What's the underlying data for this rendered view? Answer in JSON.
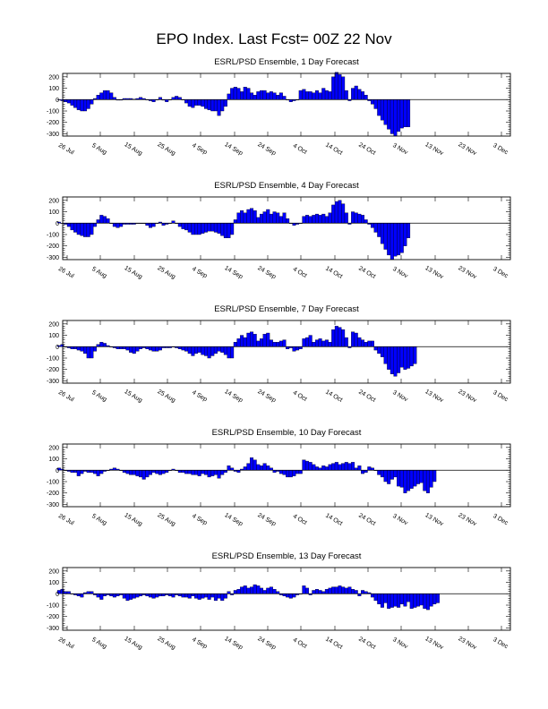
{
  "page": {
    "title": "EPO Index. Last Fcst= 00Z 22 Nov"
  },
  "colors": {
    "bar_fill": "#0000ff",
    "bar_stroke": "#000000",
    "axis": "#000000",
    "background": "#ffffff"
  },
  "chart_data": [
    {
      "type": "bar",
      "title": "ESRL/PSD Ensemble, 1 Day Forecast",
      "xlabel": "",
      "ylabel": "",
      "x_start_date": "2012-07-23",
      "x_tick_labels": [
        "26 Jul",
        "5 Aug",
        "15 Aug",
        "25 Aug",
        "4 Sep",
        "14 Sep",
        "24 Sep",
        "4 Oct",
        "14 Oct",
        "24 Oct",
        "3 Nov",
        "13 Nov",
        "23 Nov",
        "3 Dec"
      ],
      "y_ticks": [
        200,
        100,
        0,
        -100,
        -200,
        -300
      ],
      "ylim": [
        -320,
        230
      ],
      "grid": false,
      "values": [
        0,
        -10,
        -20,
        -30,
        -50,
        -70,
        -90,
        -100,
        -100,
        -80,
        -40,
        10,
        40,
        60,
        80,
        80,
        60,
        20,
        -5,
        -5,
        10,
        10,
        10,
        5,
        10,
        20,
        10,
        0,
        -10,
        -20,
        0,
        20,
        -5,
        -20,
        0,
        20,
        30,
        20,
        0,
        -30,
        -60,
        -70,
        -50,
        -50,
        -60,
        -80,
        -90,
        -100,
        -100,
        -140,
        -100,
        -60,
        50,
        100,
        110,
        100,
        70,
        110,
        100,
        60,
        40,
        70,
        80,
        80,
        60,
        70,
        60,
        40,
        60,
        30,
        0,
        -20,
        -10,
        0,
        80,
        90,
        70,
        70,
        60,
        80,
        60,
        100,
        80,
        70,
        200,
        240,
        220,
        200,
        80,
        -10,
        100,
        120,
        90,
        70,
        40,
        -10,
        -40,
        -80,
        -140,
        -180,
        -220,
        -260,
        -300,
        -320,
        -280,
        -250,
        -240,
        -240
      ]
    },
    {
      "type": "bar",
      "title": "ESRL/PSD Ensemble, 4 Day Forecast",
      "xlabel": "",
      "ylabel": "",
      "x_start_date": "2012-07-23",
      "x_tick_labels": [
        "26 Jul",
        "5 Aug",
        "15 Aug",
        "25 Aug",
        "4 Sep",
        "14 Sep",
        "24 Sep",
        "4 Oct",
        "14 Oct",
        "24 Oct",
        "3 Nov",
        "13 Nov",
        "23 Nov",
        "3 Dec"
      ],
      "y_ticks": [
        200,
        100,
        0,
        -100,
        -200,
        -300
      ],
      "ylim": [
        -320,
        230
      ],
      "grid": false,
      "values": [
        10,
        0,
        -10,
        -30,
        -60,
        -80,
        -100,
        -110,
        -120,
        -120,
        -100,
        -30,
        30,
        70,
        60,
        40,
        0,
        -30,
        -40,
        -30,
        -10,
        -10,
        -10,
        -10,
        0,
        0,
        0,
        -20,
        -40,
        -30,
        0,
        10,
        -20,
        -10,
        0,
        20,
        0,
        -30,
        -50,
        -60,
        -80,
        -100,
        -100,
        -100,
        -90,
        -80,
        -70,
        -70,
        -80,
        -90,
        -110,
        -130,
        -130,
        -100,
        30,
        90,
        110,
        90,
        120,
        130,
        110,
        50,
        80,
        100,
        120,
        80,
        100,
        90,
        60,
        90,
        40,
        0,
        -20,
        -10,
        0,
        60,
        70,
        60,
        70,
        80,
        70,
        80,
        60,
        90,
        160,
        190,
        200,
        170,
        90,
        -10,
        100,
        90,
        80,
        70,
        30,
        -10,
        -40,
        -80,
        -120,
        -180,
        -230,
        -280,
        -320,
        -290,
        -280,
        -260,
        -200,
        -130
      ]
    },
    {
      "type": "bar",
      "title": "ESRL/PSD Ensemble, 7 Day Forecast",
      "xlabel": "",
      "ylabel": "",
      "x_start_date": "2012-07-23",
      "x_tick_labels": [
        "26 Jul",
        "5 Aug",
        "15 Aug",
        "25 Aug",
        "4 Sep",
        "14 Sep",
        "24 Sep",
        "4 Oct",
        "14 Oct",
        "24 Oct",
        "3 Nov",
        "13 Nov",
        "23 Nov",
        "3 Dec"
      ],
      "y_ticks": [
        200,
        100,
        0,
        -100,
        -200,
        -300
      ],
      "ylim": [
        -320,
        230
      ],
      "grid": false,
      "values": [
        10,
        20,
        0,
        -10,
        -20,
        -20,
        -30,
        -40,
        -60,
        -100,
        -100,
        -40,
        20,
        40,
        30,
        10,
        0,
        -10,
        -20,
        -20,
        -20,
        -30,
        -50,
        -60,
        -40,
        -20,
        -10,
        -20,
        -30,
        -40,
        -40,
        -30,
        -10,
        -10,
        -10,
        0,
        -10,
        -20,
        -30,
        -40,
        -60,
        -80,
        -60,
        -50,
        -70,
        -80,
        -100,
        -80,
        -60,
        -40,
        -50,
        -70,
        -100,
        -100,
        40,
        70,
        100,
        80,
        120,
        130,
        110,
        50,
        70,
        110,
        120,
        60,
        40,
        40,
        50,
        60,
        -20,
        -10,
        -40,
        -30,
        -20,
        70,
        80,
        100,
        40,
        60,
        70,
        50,
        60,
        40,
        150,
        180,
        170,
        150,
        80,
        -10,
        130,
        120,
        80,
        60,
        40,
        50,
        50,
        -30,
        -60,
        -90,
        -150,
        -200,
        -240,
        -260,
        -230,
        -180,
        -200,
        -190,
        -170,
        -150
      ]
    },
    {
      "type": "bar",
      "title": "ESRL/PSD Ensemble, 10 Day Forecast",
      "xlabel": "",
      "ylabel": "",
      "x_start_date": "2012-07-23",
      "x_tick_labels": [
        "26 Jul",
        "5 Aug",
        "15 Aug",
        "25 Aug",
        "4 Sep",
        "14 Sep",
        "24 Sep",
        "4 Oct",
        "14 Oct",
        "24 Oct",
        "3 Nov",
        "13 Nov",
        "23 Nov",
        "3 Dec"
      ],
      "y_ticks": [
        200,
        100,
        0,
        -100,
        -200,
        -300
      ],
      "ylim": [
        -320,
        230
      ],
      "grid": false,
      "values": [
        20,
        10,
        0,
        -10,
        -20,
        -20,
        -50,
        -30,
        -10,
        -20,
        -20,
        -30,
        -50,
        -30,
        -10,
        0,
        10,
        20,
        10,
        0,
        -20,
        -30,
        -40,
        -40,
        -50,
        -60,
        -80,
        -60,
        -40,
        -20,
        -30,
        -40,
        -30,
        -20,
        0,
        10,
        0,
        -20,
        -20,
        -30,
        -30,
        -40,
        -40,
        -50,
        -30,
        -40,
        -60,
        -50,
        -40,
        -70,
        -40,
        -20,
        40,
        20,
        -10,
        -20,
        10,
        30,
        60,
        110,
        90,
        50,
        40,
        60,
        40,
        20,
        -20,
        -10,
        -30,
        -40,
        -60,
        -60,
        -50,
        -30,
        -30,
        90,
        80,
        70,
        50,
        30,
        20,
        40,
        30,
        50,
        60,
        70,
        50,
        60,
        70,
        60,
        70,
        20,
        40,
        -30,
        -20,
        30,
        20,
        0,
        -40,
        -60,
        -100,
        -120,
        -80,
        -60,
        -140,
        -150,
        -200,
        -180,
        -160,
        -140,
        -120,
        -110,
        -180,
        -200,
        -150,
        -100
      ]
    },
    {
      "type": "bar",
      "title": "ESRL/PSD Ensemble, 13 Day Forecast",
      "xlabel": "",
      "ylabel": "",
      "x_start_date": "2012-07-23",
      "x_tick_labels": [
        "26 Jul",
        "5 Aug",
        "15 Aug",
        "25 Aug",
        "4 Sep",
        "14 Sep",
        "24 Sep",
        "4 Oct",
        "14 Oct",
        "24 Oct",
        "3 Nov",
        "13 Nov",
        "23 Nov",
        "3 Dec"
      ],
      "y_ticks": [
        200,
        100,
        0,
        -100,
        -200,
        -300
      ],
      "ylim": [
        -320,
        230
      ],
      "grid": false,
      "values": [
        30,
        40,
        20,
        20,
        0,
        -10,
        -20,
        -30,
        10,
        20,
        20,
        -10,
        -30,
        -50,
        -20,
        -10,
        -20,
        -30,
        -20,
        -10,
        -40,
        -60,
        -50,
        -40,
        -30,
        -20,
        -10,
        -20,
        -30,
        -40,
        -30,
        -20,
        -20,
        -10,
        -20,
        -30,
        -10,
        -20,
        -30,
        -30,
        -40,
        -20,
        -40,
        -50,
        -40,
        -30,
        -50,
        -30,
        -60,
        -40,
        -60,
        -40,
        20,
        -10,
        30,
        40,
        60,
        70,
        50,
        60,
        80,
        70,
        50,
        30,
        50,
        60,
        40,
        20,
        -10,
        -20,
        -30,
        -40,
        -30,
        -10,
        0,
        70,
        50,
        -10,
        30,
        40,
        30,
        20,
        40,
        50,
        60,
        60,
        70,
        60,
        50,
        60,
        40,
        30,
        -20,
        30,
        20,
        10,
        -30,
        -60,
        -90,
        -120,
        -80,
        -130,
        -120,
        -110,
        -120,
        -90,
        -110,
        -70,
        -130,
        -120,
        -110,
        -100,
        -130,
        -140,
        -110,
        -90,
        -80
      ]
    }
  ]
}
